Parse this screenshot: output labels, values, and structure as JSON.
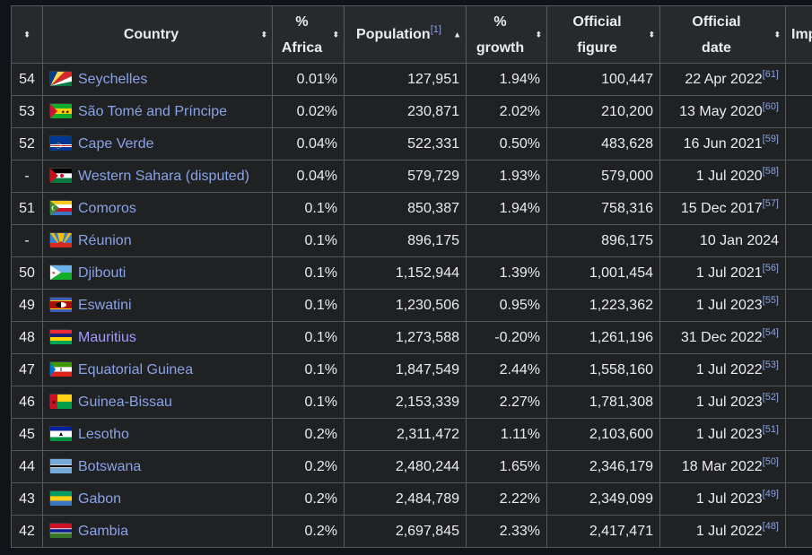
{
  "headers": {
    "rank": "",
    "country": "Country",
    "africa_line1": "%",
    "africa_line2": "Africa",
    "population": "Population",
    "population_ref": "[1]",
    "growth_line1": "%",
    "growth_line2": "growth",
    "official_figure_line1": "Official",
    "official_figure_line2": "figure",
    "official_date_line1": "Official",
    "official_date_line2": "date",
    "imp": "Imp"
  },
  "sort_icons": {
    "neutral": "⬍",
    "ascending": "▲"
  },
  "rows": [
    {
      "rank": "54",
      "country": "Seychelles",
      "africa": "0.01%",
      "population": "127,951",
      "growth": "1.94%",
      "official": "100,447",
      "date": "22 Apr 2022",
      "ref": "[61]",
      "flag": "seychelles",
      "visited": false
    },
    {
      "rank": "53",
      "country": "São Tomé and Príncipe",
      "africa": "0.02%",
      "population": "230,871",
      "growth": "2.02%",
      "official": "210,200",
      "date": "13 May 2020",
      "ref": "[60]",
      "flag": "sao-tome",
      "visited": false
    },
    {
      "rank": "52",
      "country": "Cape Verde",
      "africa": "0.04%",
      "population": "522,331",
      "growth": "0.50%",
      "official": "483,628",
      "date": "16 Jun 2021",
      "ref": "[59]",
      "flag": "cape-verde",
      "visited": false
    },
    {
      "rank": "-",
      "country": "Western Sahara (disputed)",
      "africa": "0.04%",
      "population": "579,729",
      "growth": "1.93%",
      "official": "579,000",
      "date": "1 Jul 2020",
      "ref": "[58]",
      "flag": "western-sahara",
      "visited": false
    },
    {
      "rank": "51",
      "country": "Comoros",
      "africa": "0.1%",
      "population": "850,387",
      "growth": "1.94%",
      "official": "758,316",
      "date": "15 Dec 2017",
      "ref": "[57]",
      "flag": "comoros",
      "visited": false
    },
    {
      "rank": "-",
      "country": "Réunion",
      "africa": "0.1%",
      "population": "896,175",
      "growth": "",
      "official": "896,175",
      "date": "10 Jan 2024",
      "ref": "",
      "flag": "reunion",
      "visited": false
    },
    {
      "rank": "50",
      "country": "Djibouti",
      "africa": "0.1%",
      "population": "1,152,944",
      "growth": "1.39%",
      "official": "1,001,454",
      "date": "1 Jul 2021",
      "ref": "[56]",
      "flag": "djibouti",
      "visited": false
    },
    {
      "rank": "49",
      "country": "Eswatini",
      "africa": "0.1%",
      "population": "1,230,506",
      "growth": "0.95%",
      "official": "1,223,362",
      "date": "1 Jul 2023",
      "ref": "[55]",
      "flag": "eswatini",
      "visited": false
    },
    {
      "rank": "48",
      "country": "Mauritius",
      "africa": "0.1%",
      "population": "1,273,588",
      "growth": "-0.20%",
      "official": "1,261,196",
      "date": "31 Dec 2022",
      "ref": "[54]",
      "flag": "mauritius",
      "visited": true
    },
    {
      "rank": "47",
      "country": "Equatorial Guinea",
      "africa": "0.1%",
      "population": "1,847,549",
      "growth": "2.44%",
      "official": "1,558,160",
      "date": "1 Jul 2022",
      "ref": "[53]",
      "flag": "equatorial-guinea",
      "visited": false
    },
    {
      "rank": "46",
      "country": "Guinea-Bissau",
      "africa": "0.1%",
      "population": "2,153,339",
      "growth": "2.27%",
      "official": "1,781,308",
      "date": "1 Jul 2023",
      "ref": "[52]",
      "flag": "guinea-bissau",
      "visited": false
    },
    {
      "rank": "45",
      "country": "Lesotho",
      "africa": "0.2%",
      "population": "2,311,472",
      "growth": "1.11%",
      "official": "2,103,600",
      "date": "1 Jul 2023",
      "ref": "[51]",
      "flag": "lesotho",
      "visited": false
    },
    {
      "rank": "44",
      "country": "Botswana",
      "africa": "0.2%",
      "population": "2,480,244",
      "growth": "1.65%",
      "official": "2,346,179",
      "date": "18 Mar 2022",
      "ref": "[50]",
      "flag": "botswana",
      "visited": false
    },
    {
      "rank": "43",
      "country": "Gabon",
      "africa": "0.2%",
      "population": "2,484,789",
      "growth": "2.22%",
      "official": "2,349,099",
      "date": "1 Jul 2023",
      "ref": "[49]",
      "flag": "gabon",
      "visited": false
    },
    {
      "rank": "42",
      "country": "Gambia",
      "africa": "0.2%",
      "population": "2,697,845",
      "growth": "2.33%",
      "official": "2,417,471",
      "date": "1 Jul 2022",
      "ref": "[48]",
      "flag": "gambia",
      "visited": false
    }
  ],
  "colors": {
    "background": "#101418",
    "table_bg": "#202122",
    "header_bg": "#27292d",
    "border": "#54595d",
    "link": "#88a3e8",
    "visited_link": "#a499ff",
    "text": "#eaecf0"
  }
}
